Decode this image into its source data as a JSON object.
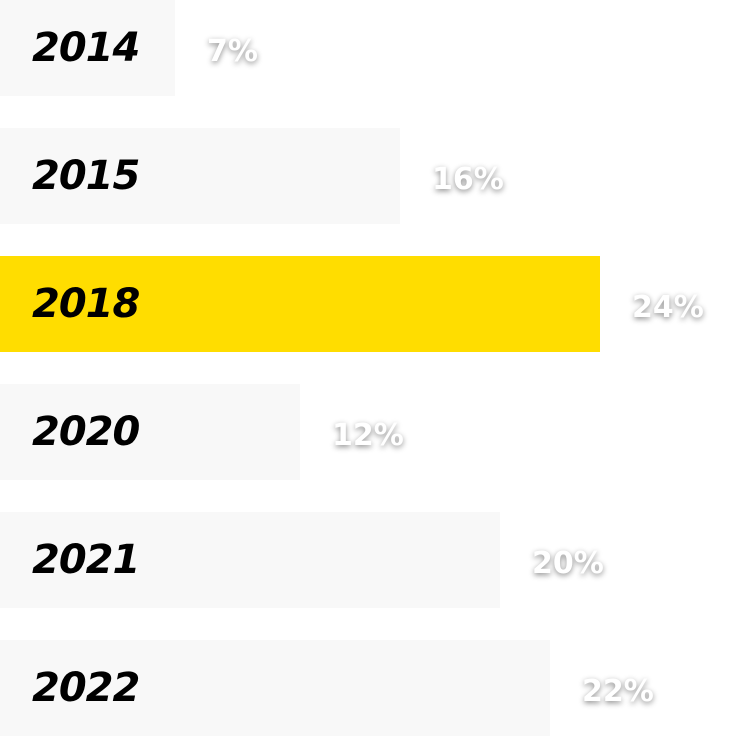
{
  "chart_data": {
    "type": "bar",
    "orientation": "horizontal",
    "categories": [
      "2014",
      "2015",
      "2018",
      "2020",
      "2021",
      "2022"
    ],
    "values": [
      7,
      16,
      24,
      12,
      20,
      22
    ],
    "value_labels": [
      "7%",
      "16%",
      "24%",
      "12%",
      "20%",
      "22%"
    ],
    "colors": [
      "#f8f8f8",
      "#f8f8f8",
      "#ffdd00",
      "#f8f8f8",
      "#f8f8f8",
      "#f8f8f8"
    ]
  }
}
